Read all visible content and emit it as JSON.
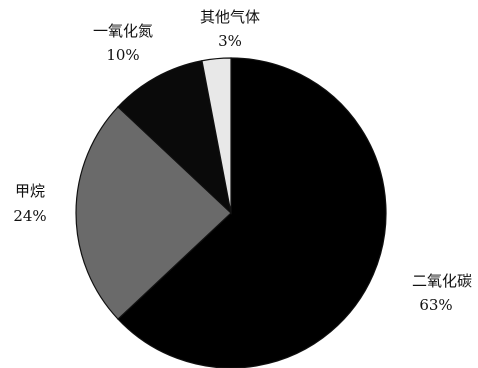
{
  "chart_data": {
    "type": "pie",
    "title": "",
    "slices": [
      {
        "name": "二氧化碳",
        "value": 63,
        "label": "63%",
        "color": "#000000"
      },
      {
        "name": "甲烷",
        "value": 24,
        "label": "24%",
        "color": "#6a6a6a"
      },
      {
        "name": "一氧化氮",
        "value": 10,
        "label": "10%",
        "color": "#0a0a0a"
      },
      {
        "name": "其他气体",
        "value": 3,
        "label": "3%",
        "color": "#e8e8e8"
      }
    ],
    "start": "12 o'clock",
    "direction": "clockwise",
    "legend": "none"
  }
}
